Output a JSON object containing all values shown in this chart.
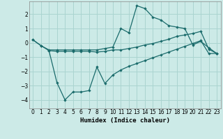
{
  "xlabel": "Humidex (Indice chaleur)",
  "bg_color": "#cceae7",
  "grid_color": "#aad4d0",
  "line_color": "#1a6b6b",
  "ylim": [
    -4.6,
    2.9
  ],
  "xlim": [
    -0.5,
    23.5
  ],
  "yticks": [
    -4,
    -3,
    -2,
    -1,
    0,
    1,
    2
  ],
  "xticks": [
    0,
    1,
    2,
    3,
    4,
    5,
    6,
    7,
    8,
    9,
    10,
    11,
    12,
    13,
    14,
    15,
    16,
    17,
    18,
    19,
    20,
    21,
    22,
    23
  ],
  "line1_x": [
    0,
    1,
    2,
    3,
    4,
    5,
    6,
    7,
    8,
    9,
    10,
    11,
    12,
    13,
    14,
    15,
    16,
    17,
    18,
    19,
    20,
    21,
    22,
    23
  ],
  "line1_y": [
    0.2,
    -0.2,
    -0.5,
    -0.5,
    -0.5,
    -0.5,
    -0.5,
    -0.5,
    -0.5,
    -0.4,
    -0.3,
    1.0,
    0.7,
    2.6,
    2.4,
    1.8,
    1.6,
    1.2,
    1.1,
    1.0,
    -0.15,
    0.1,
    -0.35,
    -0.75
  ],
  "line2_x": [
    0,
    1,
    2,
    3,
    4,
    5,
    6,
    7,
    8,
    9,
    10,
    11,
    12,
    13,
    14,
    15,
    16,
    17,
    18,
    19,
    20,
    21,
    22,
    23
  ],
  "line2_y": [
    0.2,
    -0.2,
    -0.55,
    -0.6,
    -0.6,
    -0.6,
    -0.6,
    -0.6,
    -0.65,
    -0.6,
    -0.5,
    -0.5,
    -0.4,
    -0.3,
    -0.15,
    -0.05,
    0.1,
    0.25,
    0.45,
    0.55,
    0.65,
    0.8,
    -0.45,
    -0.75
  ],
  "line3_x": [
    2,
    3,
    4,
    5,
    6,
    7,
    8,
    9,
    10,
    11,
    12,
    13,
    14,
    15,
    16,
    17,
    18,
    19,
    20,
    21,
    22,
    23
  ],
  "line3_y": [
    -0.55,
    -2.8,
    -4.0,
    -3.45,
    -3.45,
    -3.35,
    -1.7,
    -2.85,
    -2.25,
    -1.9,
    -1.65,
    -1.45,
    -1.25,
    -1.05,
    -0.85,
    -0.65,
    -0.45,
    -0.25,
    -0.05,
    0.15,
    -0.75,
    -0.75
  ]
}
